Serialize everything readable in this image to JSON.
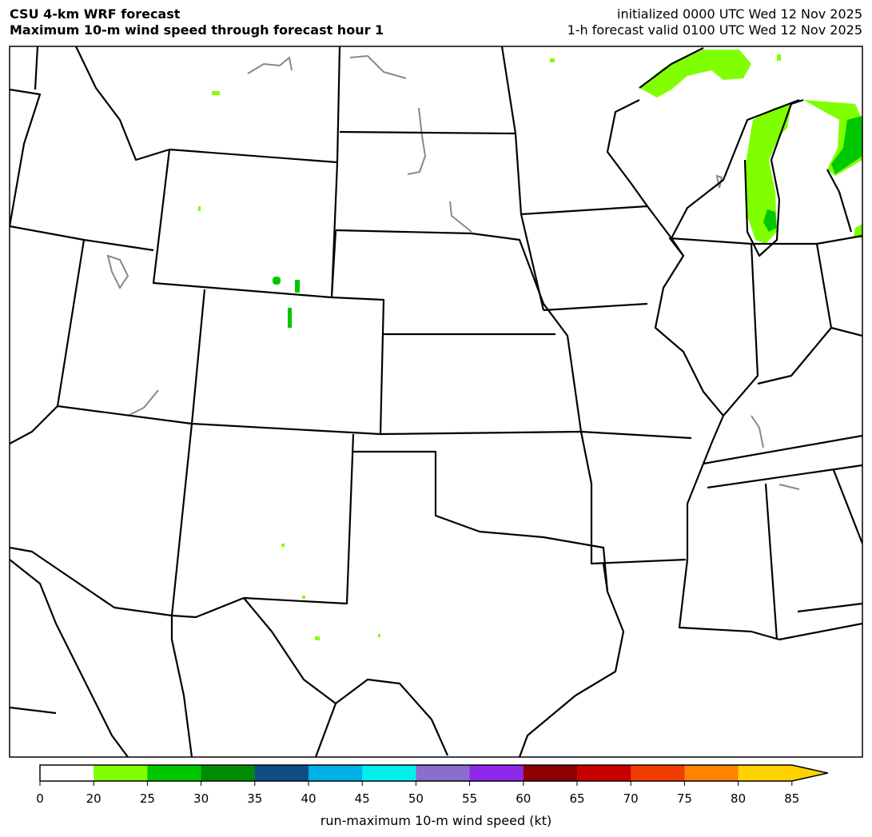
{
  "header": {
    "title_line1": "CSU 4-km WRF forecast",
    "title_line2": "Maximum 10-m wind speed through forecast hour 1",
    "init_text": "initialized 0000 UTC Wed 12 Nov 2025",
    "valid_text": "1-h forecast valid 0100 UTC Wed 12 Nov 2025"
  },
  "colorbar": {
    "label": "run-maximum 10-m wind speed (kt)",
    "ticks": [
      "0",
      "20",
      "25",
      "30",
      "35",
      "40",
      "45",
      "50",
      "55",
      "60",
      "65",
      "70",
      "75",
      "80",
      "85"
    ],
    "colors": [
      "#ffffff",
      "#80ff00",
      "#00c800",
      "#008c00",
      "#104c88",
      "#00b0e8",
      "#00f0f0",
      "#8c6ccc",
      "#8c28e8",
      "#8c0000",
      "#c80000",
      "#f03c00",
      "#ff8200",
      "#ffd200"
    ],
    "extend": "max"
  },
  "map": {
    "region": "Central United States",
    "field_colors": {
      "20-25": "#80ff00",
      "25-30": "#00c800"
    }
  }
}
